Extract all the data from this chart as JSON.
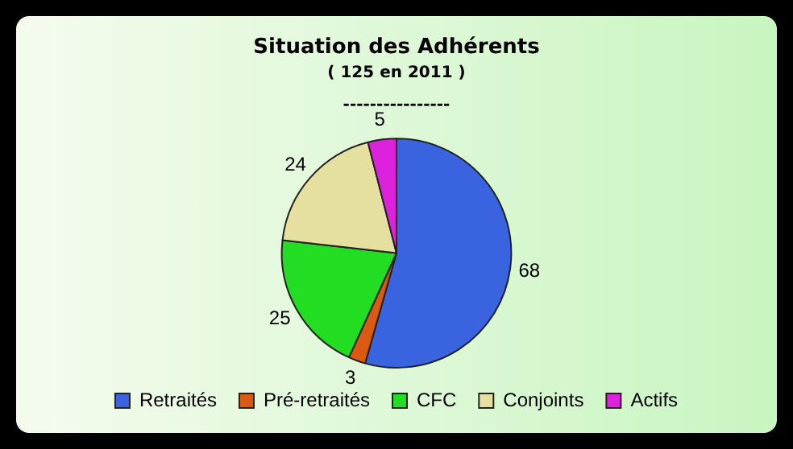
{
  "chart_data": {
    "type": "pie",
    "title": "Situation des Adhérents",
    "subtitle": "( 125 en 2011 )",
    "annotations": [
      "----------------"
    ],
    "categories": [
      "Retraités",
      "Pré-retraités",
      "CFC",
      "Conjoints",
      "Actifs"
    ],
    "values": [
      68,
      3,
      25,
      24,
      5
    ],
    "colors": [
      "#3a63e0",
      "#d95a10",
      "#22dd22",
      "#e6e0a0",
      "#dd22dd"
    ],
    "data_labels": true,
    "legend": "bottom"
  }
}
